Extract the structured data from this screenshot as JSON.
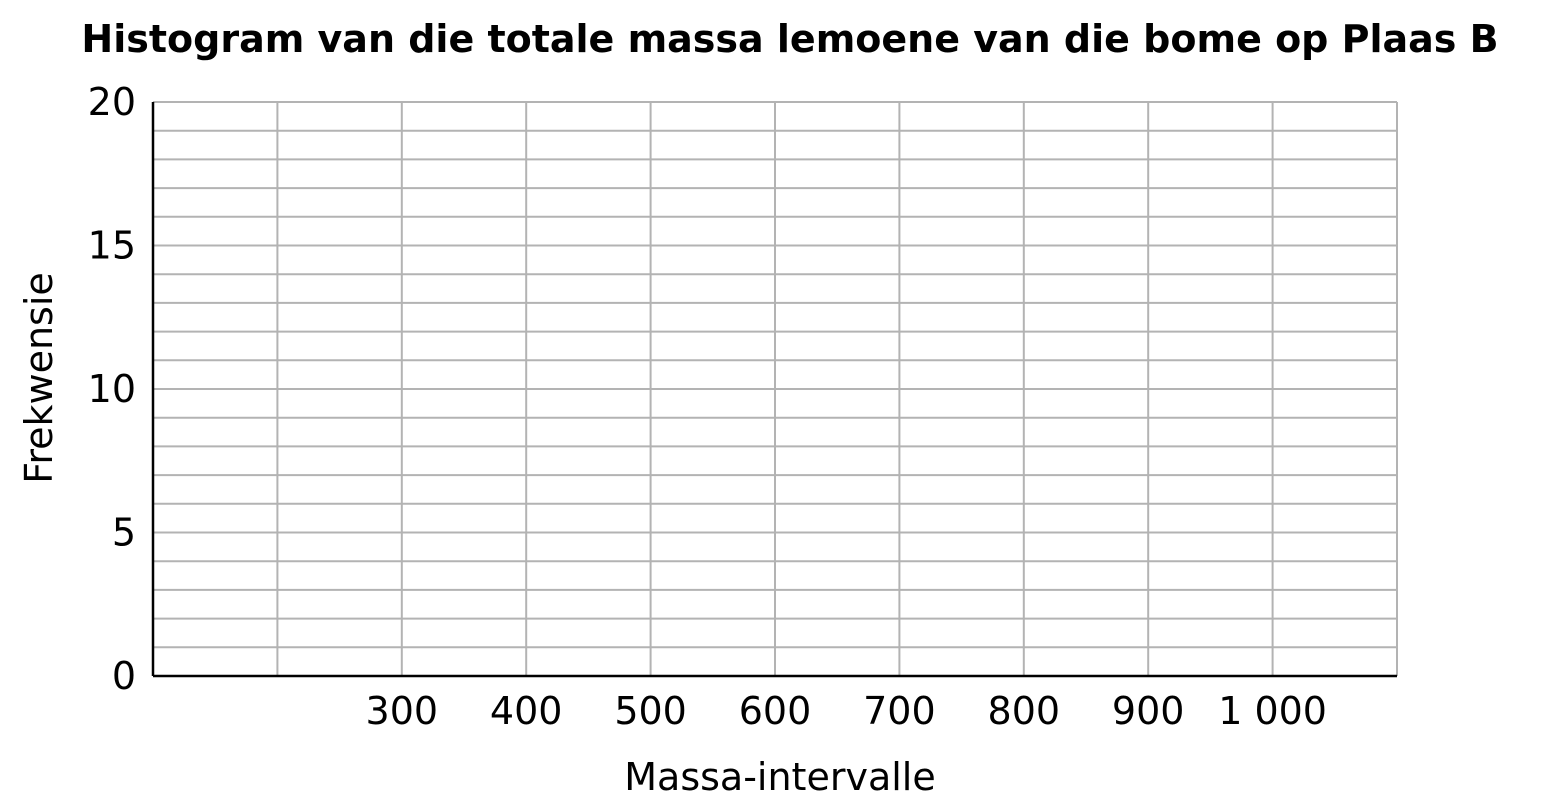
{
  "chart_data": {
    "type": "bar",
    "title": "Histogram van die totale massa lemoene van die bome op Plaas B",
    "xlabel": "Massa-intervalle",
    "ylabel": "Frekwensie",
    "x_tick_labels": [
      "300",
      "400",
      "500",
      "600",
      "700",
      "800",
      "900",
      "1 000"
    ],
    "x_tick_values": [
      300,
      400,
      500,
      600,
      700,
      800,
      900,
      1000
    ],
    "xlim": [
      100,
      1100
    ],
    "x_grid_step": 100,
    "y_tick_labels": [
      "0",
      "5",
      "10",
      "15",
      "20"
    ],
    "y_tick_values": [
      0,
      5,
      10,
      15,
      20
    ],
    "ylim": [
      0,
      20
    ],
    "y_grid_step": 1,
    "grid": true,
    "series": [],
    "grid_color": "#b3b3b3",
    "axis_color": "#000000"
  }
}
